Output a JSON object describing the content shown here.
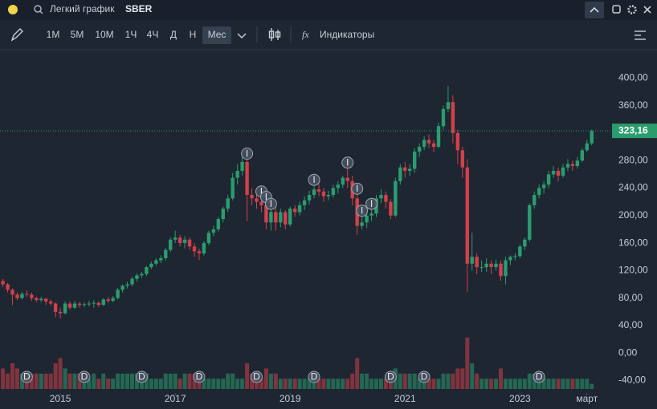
{
  "header": {
    "title": "Легкий график",
    "symbol": "SBER"
  },
  "toolbar": {
    "intervals": [
      "1М",
      "5М",
      "10М",
      "1Ч",
      "4Ч",
      "Д",
      "Н",
      "Мес"
    ],
    "selected": 7,
    "indicators": "Индикаторы"
  },
  "chart_data": {
    "type": "candlestick",
    "open": [
      105,
      100,
      92,
      85,
      80,
      86,
      85,
      80,
      77,
      79,
      75,
      72,
      60,
      58,
      72,
      66,
      72,
      70,
      71,
      72,
      73,
      70,
      78,
      76,
      80,
      92,
      98,
      100,
      108,
      113,
      115,
      125,
      130,
      135,
      138,
      150,
      165,
      168,
      160,
      165,
      155,
      148,
      145,
      160,
      175,
      180,
      195,
      210,
      225,
      255,
      265,
      278,
      230,
      225,
      220,
      215,
      190,
      205,
      190,
      205,
      187,
      210,
      205,
      215,
      222,
      230,
      238,
      235,
      228,
      230,
      240,
      245,
      255,
      250,
      225,
      185,
      190,
      200,
      203,
      225,
      230,
      220,
      200,
      250,
      270,
      265,
      268,
      293,
      300,
      310,
      305,
      300,
      330,
      355,
      365,
      320,
      295,
      270,
      130,
      140,
      125,
      125,
      130,
      125,
      130,
      112,
      135,
      140,
      141,
      155,
      165,
      215,
      230,
      240,
      245,
      260,
      265,
      258,
      270,
      275,
      272,
      280,
      295,
      305
    ],
    "high": [
      108,
      102,
      94,
      88,
      89,
      91,
      88,
      82,
      82,
      80,
      78,
      74,
      66,
      75,
      75,
      76,
      74,
      74,
      76,
      77,
      75,
      80,
      82,
      83,
      95,
      100,
      104,
      111,
      116,
      118,
      127,
      133,
      138,
      142,
      153,
      168,
      178,
      172,
      170,
      168,
      160,
      152,
      163,
      178,
      185,
      198,
      213,
      230,
      262,
      275,
      285,
      283,
      240,
      232,
      228,
      220,
      210,
      212,
      210,
      208,
      213,
      215,
      220,
      228,
      236,
      245,
      248,
      240,
      236,
      245,
      250,
      258,
      270,
      258,
      232,
      200,
      205,
      210,
      230,
      238,
      235,
      224,
      255,
      275,
      278,
      275,
      298,
      305,
      315,
      318,
      310,
      335,
      360,
      388,
      375,
      325,
      300,
      282,
      175,
      145,
      135,
      138,
      135,
      136,
      135,
      140,
      142,
      145,
      158,
      168,
      218,
      235,
      245,
      250,
      265,
      272,
      270,
      275,
      282,
      280,
      285,
      298,
      310,
      325
    ],
    "low": [
      96,
      88,
      70,
      77,
      78,
      82,
      76,
      74,
      74,
      70,
      69,
      52,
      50,
      56,
      63,
      64,
      66,
      67,
      68,
      66,
      67,
      69,
      73,
      74,
      78,
      88,
      94,
      97,
      104,
      109,
      112,
      122,
      127,
      131,
      135,
      147,
      160,
      155,
      152,
      150,
      140,
      135,
      142,
      157,
      170,
      177,
      190,
      205,
      222,
      245,
      258,
      192,
      215,
      210,
      205,
      180,
      178,
      178,
      183,
      180,
      184,
      198,
      200,
      208,
      216,
      225,
      228,
      220,
      222,
      226,
      232,
      240,
      240,
      215,
      172,
      180,
      182,
      192,
      198,
      218,
      210,
      195,
      198,
      245,
      255,
      258,
      262,
      285,
      295,
      298,
      292,
      298,
      325,
      350,
      305,
      275,
      255,
      89,
      120,
      115,
      118,
      118,
      115,
      120,
      105,
      100,
      128,
      135,
      138,
      150,
      162,
      210,
      225,
      232,
      240,
      255,
      250,
      255,
      265,
      265,
      268,
      278,
      292,
      302
    ],
    "close": [
      100,
      92,
      85,
      80,
      86,
      85,
      80,
      77,
      79,
      75,
      72,
      60,
      58,
      72,
      66,
      72,
      70,
      71,
      72,
      73,
      70,
      78,
      76,
      80,
      92,
      98,
      100,
      108,
      113,
      115,
      125,
      130,
      135,
      138,
      150,
      165,
      168,
      160,
      165,
      155,
      148,
      145,
      160,
      175,
      180,
      195,
      210,
      225,
      255,
      265,
      278,
      230,
      225,
      220,
      215,
      190,
      205,
      190,
      205,
      187,
      210,
      205,
      215,
      222,
      230,
      238,
      235,
      228,
      230,
      240,
      245,
      255,
      250,
      225,
      185,
      190,
      200,
      203,
      225,
      230,
      220,
      200,
      250,
      270,
      265,
      268,
      293,
      300,
      310,
      305,
      300,
      330,
      355,
      365,
      320,
      295,
      270,
      130,
      140,
      125,
      125,
      130,
      125,
      130,
      112,
      135,
      140,
      141,
      155,
      165,
      215,
      230,
      240,
      245,
      260,
      265,
      258,
      270,
      275,
      272,
      280,
      295,
      305,
      323.16
    ],
    "volume": [
      4,
      3,
      5,
      4,
      3,
      3,
      3,
      3,
      3,
      3,
      3,
      5,
      6,
      4,
      3,
      3,
      3,
      2,
      2,
      3,
      2,
      3,
      2,
      2,
      3,
      3,
      3,
      3,
      3,
      2,
      3,
      2,
      2,
      2,
      3,
      3,
      3,
      2,
      3,
      3,
      3,
      3,
      2,
      2,
      2,
      2,
      2,
      3,
      3,
      2,
      2,
      5,
      3,
      2,
      2,
      4,
      3,
      3,
      2,
      2,
      2,
      2,
      2,
      2,
      2,
      3,
      2,
      2,
      2,
      2,
      2,
      2,
      2,
      3,
      6,
      3,
      3,
      2,
      2,
      2,
      2,
      3,
      4,
      3,
      3,
      3,
      3,
      2,
      2,
      2,
      2,
      2,
      3,
      3,
      3,
      4,
      4,
      10,
      5,
      3,
      2,
      2,
      2,
      2,
      4,
      2,
      2,
      2,
      2,
      2,
      3,
      3,
      2,
      2,
      2,
      2,
      2,
      2,
      2,
      2,
      2,
      2,
      2,
      1
    ],
    "last_label": "323,16",
    "up_color": "#2a9d6f",
    "down_color": "#d2404b",
    "grid": false,
    "xlim": [
      -0.6,
      126.9
    ],
    "ylim": [
      -58,
      440
    ],
    "xticks": [
      {
        "value": 12,
        "label": "2015"
      },
      {
        "value": 36,
        "label": "2017"
      },
      {
        "value": 60,
        "label": "2019"
      },
      {
        "value": 84,
        "label": "2021"
      },
      {
        "value": 108,
        "label": "2023"
      },
      {
        "value": 122,
        "label": "март"
      }
    ],
    "yticks": [
      {
        "value": 400,
        "label": "400,00"
      },
      {
        "value": 360,
        "label": "360,00"
      },
      {
        "value": 280,
        "label": "280,00"
      },
      {
        "value": 240,
        "label": "240,00"
      },
      {
        "value": 200,
        "label": "200,00"
      },
      {
        "value": 160,
        "label": "160,00"
      },
      {
        "value": 120,
        "label": "120,00"
      },
      {
        "value": 80,
        "label": "80,00"
      },
      {
        "value": 40,
        "label": "40,00"
      },
      {
        "value": 0,
        "label": "0,00"
      },
      {
        "value": -40,
        "label": "-40,00"
      }
    ],
    "dividend_markers": {
      "label": "D",
      "at": [
        5,
        17,
        29,
        41,
        53,
        65,
        81,
        88,
        112
      ]
    },
    "event_markers": {
      "label": "I",
      "at": [
        51,
        54,
        55,
        56,
        65,
        72,
        74,
        75,
        77
      ]
    }
  }
}
